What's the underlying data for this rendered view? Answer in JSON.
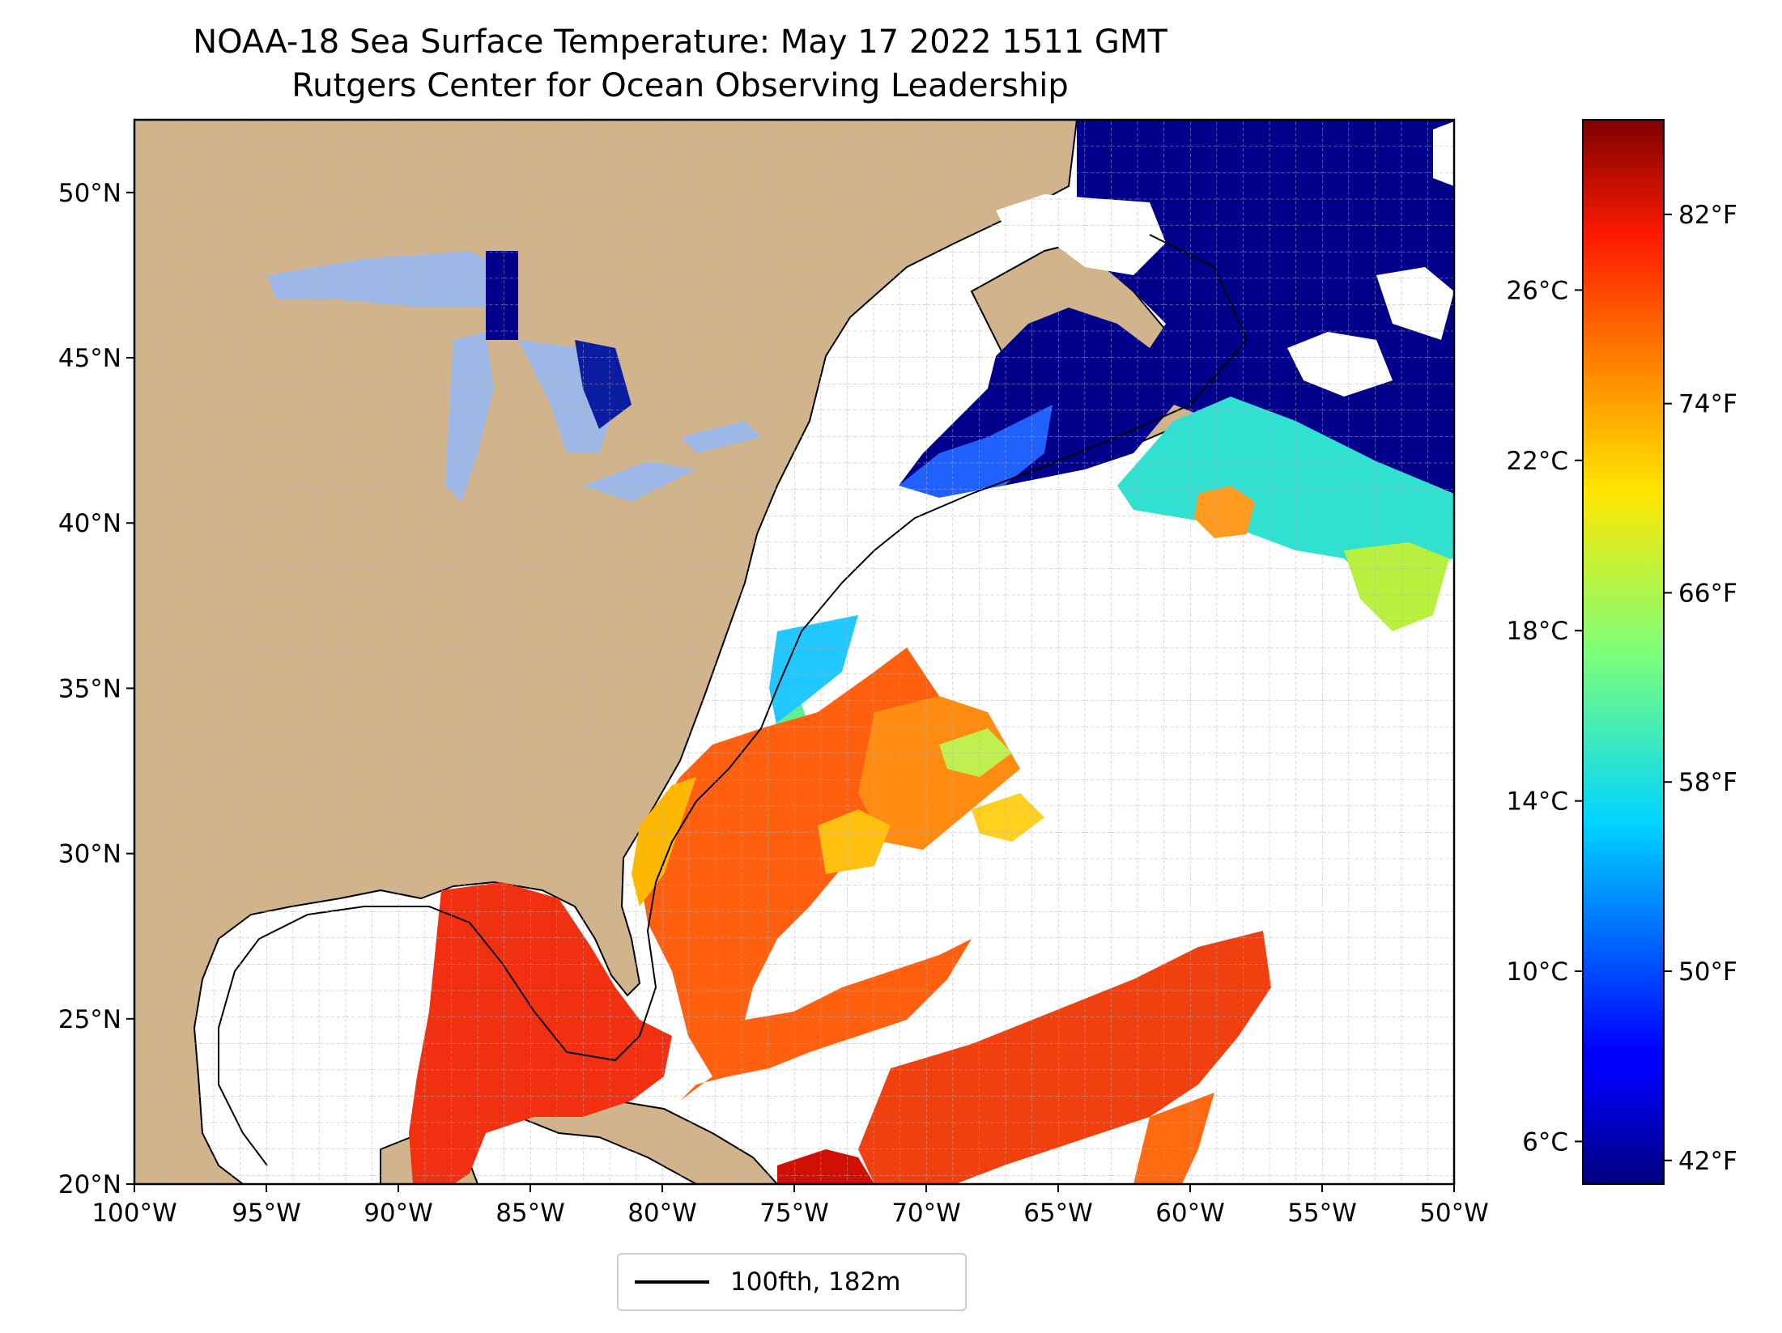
{
  "title": "NOAA-18 Sea Surface Temperature: May 17 2022 1511 GMT",
  "subtitle": "Rutgers Center for Ocean Observing Leadership",
  "map": {
    "lon_range": [
      -100,
      -50
    ],
    "lat_range": [
      20,
      52.2
    ],
    "lon_ticks": [
      "100°W",
      "95°W",
      "90°W",
      "85°W",
      "80°W",
      "75°W",
      "70°W",
      "65°W",
      "60°W",
      "55°W",
      "50°W"
    ],
    "lat_ticks": [
      "20°N",
      "25°N",
      "30°N",
      "35°N",
      "40°N",
      "45°N",
      "50°N"
    ],
    "land_color": "#d2b48c",
    "grid": true
  },
  "colorbar": {
    "colormap": "jet",
    "range_c": [
      5,
      30
    ],
    "celsius_ticks": [
      "6°C",
      "10°C",
      "14°C",
      "18°C",
      "22°C",
      "26°C"
    ],
    "fahrenheit_ticks": [
      "42°F",
      "50°F",
      "58°F",
      "66°F",
      "74°F",
      "82°F"
    ]
  },
  "legend": {
    "label": "100fth, 182m"
  }
}
